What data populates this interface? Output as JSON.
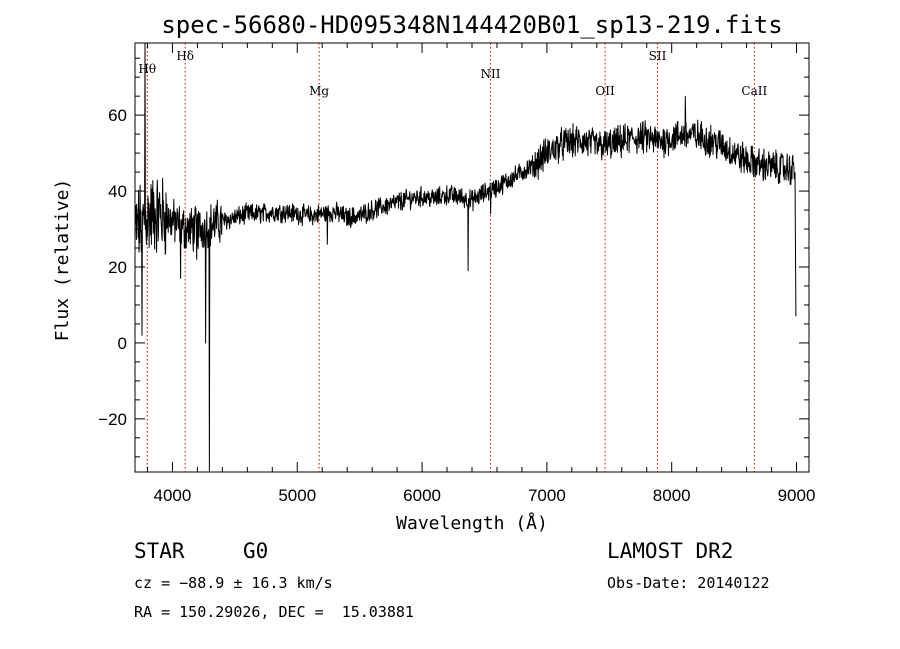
{
  "chart_data": {
    "type": "line",
    "title": "spec-56680-HD095348N144420B01_sp13-219.fits",
    "xlabel": "Wavelength (Å)",
    "ylabel": "Flux (relative)",
    "xlim": [
      3700,
      9100
    ],
    "ylim": [
      -34,
      79
    ],
    "xticks": [
      4000,
      5000,
      6000,
      7000,
      8000,
      9000
    ],
    "yticks": [
      -20,
      0,
      20,
      40,
      60
    ],
    "grid": false,
    "line_color": "#000000",
    "marker_color": "#cc0000",
    "lines": [
      {
        "label": "Hθ",
        "wavelength": 3798
      },
      {
        "label": "Hδ",
        "wavelength": 4102
      },
      {
        "label": "Mg",
        "wavelength": 5175
      },
      {
        "label": "NII",
        "wavelength": 6548
      },
      {
        "label": "OII",
        "wavelength": 7466
      },
      {
        "label": "SII",
        "wavelength": 7886
      },
      {
        "label": "CaII",
        "wavelength": 8662
      }
    ],
    "series": [
      {
        "x": [
          3700,
          3730,
          3760,
          3790,
          3820,
          3850,
          3880,
          3920,
          3960,
          4000,
          4050,
          4100,
          4150,
          4200,
          4250,
          4300,
          4350,
          4400,
          4450,
          4500,
          4600,
          4700,
          4800,
          4900,
          5000,
          5100,
          5200,
          5300,
          5400,
          5500,
          5600,
          5700,
          5800,
          5900,
          6000,
          6100,
          6200,
          6300,
          6400,
          6500,
          6600,
          6700,
          6800,
          6900,
          7000,
          7100,
          7200,
          7300,
          7400,
          7500,
          7600,
          7700,
          7800,
          7900,
          8000,
          8100,
          8200,
          8300,
          8400,
          8500,
          8600,
          8700,
          8800,
          8900,
          8990
        ],
        "y": [
          30,
          31,
          32,
          33,
          33.5,
          34,
          34,
          33.5,
          33,
          32,
          31,
          30,
          30,
          30,
          30.5,
          31,
          31.5,
          32,
          32.5,
          33,
          34,
          34,
          34.5,
          34.5,
          34,
          33.5,
          34,
          34.5,
          33,
          33.5,
          35,
          36,
          37,
          38,
          38.5,
          38,
          39,
          38.5,
          37.5,
          39.5,
          41,
          43,
          45,
          47,
          50,
          52,
          53,
          53,
          52,
          52,
          53,
          54,
          54,
          53,
          54,
          55,
          54.5,
          53.5,
          52,
          50,
          48,
          47,
          46.5,
          46,
          45.5
        ]
      }
    ],
    "features": [
      {
        "x": 3780,
        "y": 79
      },
      {
        "x": 3755,
        "y": 2
      },
      {
        "x": 4065,
        "y": 17
      },
      {
        "x": 4195,
        "y": 22
      },
      {
        "x": 4265,
        "y": 0
      },
      {
        "x": 4295,
        "y": -35
      },
      {
        "x": 5240,
        "y": 26
      },
      {
        "x": 6370,
        "y": 19
      },
      {
        "x": 6550,
        "y": 34
      },
      {
        "x": 8110,
        "y": 65
      }
    ],
    "edge_end": {
      "x": 8995,
      "y": 7
    }
  },
  "footer": {
    "class_label": "STAR",
    "subclass": "G0",
    "survey": "LAMOST DR2",
    "cz": "cz = −88.9 ± 16.3 km/s",
    "obs_date": "Obs-Date: 20140122",
    "coords": "RA = 150.29026, DEC =  15.03881"
  }
}
